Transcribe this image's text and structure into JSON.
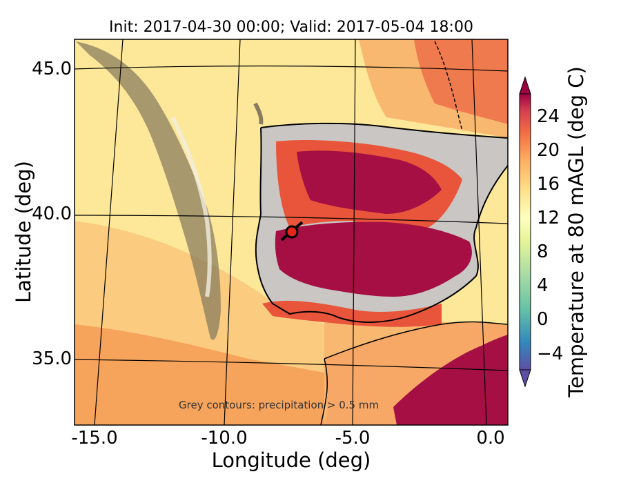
{
  "title": "Init: 2017-04-30 00:00; Valid: 2017-05-04 18:00",
  "xaxis": {
    "label": "Longitude (deg)",
    "ticks": [
      "-15.0",
      "-10.0",
      "-5.0",
      "0.0"
    ]
  },
  "yaxis": {
    "label": "Latitude (deg)",
    "ticks": [
      "45.0",
      "40.0",
      "35.0"
    ]
  },
  "colorbar": {
    "label": "Temperature at 80 mAGL (deg C)",
    "ticks": [
      "24",
      "20",
      "16",
      "12",
      "8",
      "4",
      "0",
      "−4"
    ],
    "range": [
      -6,
      27
    ],
    "colormap": "Spectral_r"
  },
  "annotation": "Grey contours: precipitation > 0.5 mm",
  "marker": {
    "color": "#e8251c"
  },
  "colors": {
    "ocean_warm": "#f6a35c",
    "ocean_mild": "#fcd38a",
    "ocean_cool": "#fde89a",
    "land_hot": "#a50f43",
    "land_warm": "#e8553a",
    "precip_grey": "#c9c6c4"
  }
}
